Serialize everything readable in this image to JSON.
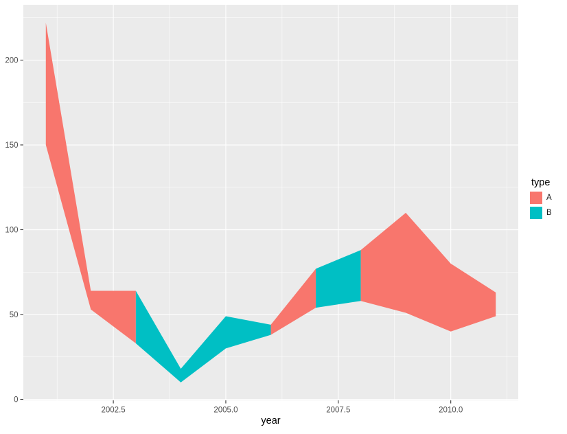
{
  "chart_data": {
    "type": "area",
    "subtype": "ribbon",
    "xlabel": "year",
    "legend_title": "type",
    "x": [
      2001,
      2002,
      2003,
      2004,
      2005,
      2006,
      2007,
      2008,
      2009,
      2010,
      2011
    ],
    "ymin": [
      150,
      53,
      33,
      10,
      30,
      38,
      54,
      58,
      51,
      40,
      49
    ],
    "ymax": [
      222,
      64,
      64,
      18,
      49,
      44,
      77,
      88,
      110,
      80,
      63
    ],
    "segment_types": [
      "A",
      "A",
      "B",
      "B",
      "B",
      "A",
      "B",
      "A",
      "A",
      "A"
    ],
    "types": [
      {
        "name": "A",
        "color": "#F8766D"
      },
      {
        "name": "B",
        "color": "#00BFC4"
      }
    ],
    "x_domain": [
      2000.5,
      2011.5
    ],
    "y_domain": [
      -0.6,
      232.6
    ],
    "x_ticks": [
      {
        "v": 2002.5,
        "label": "2002.5"
      },
      {
        "v": 2005.0,
        "label": "2005.0"
      },
      {
        "v": 2007.5,
        "label": "2007.5"
      },
      {
        "v": 2010.0,
        "label": "2010.0"
      }
    ],
    "y_ticks": [
      {
        "v": 0,
        "label": "0"
      },
      {
        "v": 50,
        "label": "50"
      },
      {
        "v": 100,
        "label": "100"
      },
      {
        "v": 150,
        "label": "150"
      },
      {
        "v": 200,
        "label": "200"
      }
    ],
    "x_minor": [
      2001.25,
      2003.75,
      2006.25,
      2008.75,
      2011.25
    ],
    "y_minor": [
      25,
      75,
      125,
      175,
      225
    ],
    "grid": true,
    "legend_position": "right",
    "colors": {
      "panel_bg": "#EBEBEB",
      "grid": "#FFFFFF",
      "tick": "#333333",
      "axis_text": "#4D4D4D",
      "title_text": "#000000"
    }
  },
  "legend": {
    "title": "type",
    "items": [
      {
        "label": "A",
        "color": "#F8766D"
      },
      {
        "label": "B",
        "color": "#00BFC4"
      }
    ]
  }
}
